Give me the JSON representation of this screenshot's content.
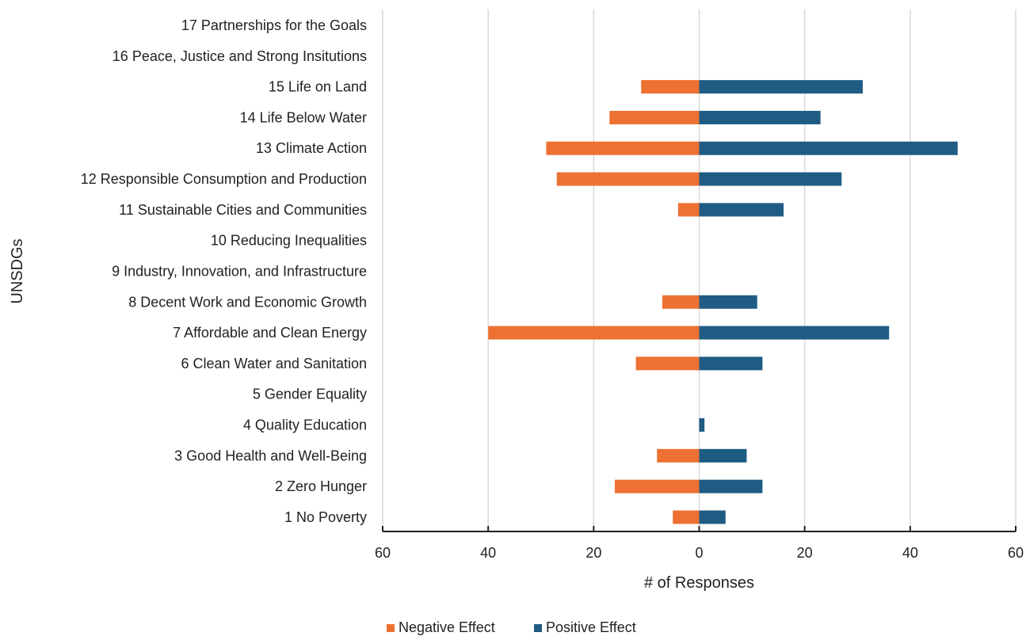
{
  "chart_data": {
    "type": "bar",
    "orientation": "horizontal",
    "layout": "diverging",
    "title": "",
    "xlabel": "# of Responses",
    "ylabel": "UNSDGs",
    "xlim": [
      -60,
      60
    ],
    "xticks": [
      -60,
      -40,
      -20,
      0,
      20,
      40,
      60
    ],
    "xtick_labels": [
      "60",
      "40",
      "20",
      "0",
      "20",
      "40",
      "60"
    ],
    "grid": "vertical",
    "legend_position": "bottom",
    "categories": [
      "1 No Poverty",
      "2 Zero Hunger",
      "3 Good Health and Well-Being",
      "4 Quality Education",
      "5 Gender Equality",
      "6 Clean Water and Sanitation",
      "7 Affordable and Clean Energy",
      "8 Decent Work and Economic Growth",
      "9 Industry, Innovation, and Infrastructure",
      "10 Reducing Inequalities",
      "11 Sustainable Cities and Communities",
      "12 Responsible Consumption and Production",
      "13 Climate Action",
      "14 Life Below Water",
      "15 Life on Land",
      "16 Peace, Justice and Strong Insitutions",
      "17 Partnerships for the Goals"
    ],
    "series": [
      {
        "name": "Negative Effect",
        "color": "#ED7132",
        "values": [
          -5,
          -16,
          -8,
          0,
          0,
          -12,
          -40,
          -7,
          0,
          0,
          -4,
          -27,
          -29,
          -17,
          -11,
          0,
          0
        ]
      },
      {
        "name": "Positive Effect",
        "color": "#1F5C84",
        "values": [
          5,
          12,
          9,
          1,
          0,
          12,
          36,
          11,
          0,
          0,
          16,
          27,
          49,
          23,
          31,
          0,
          0
        ]
      }
    ]
  }
}
